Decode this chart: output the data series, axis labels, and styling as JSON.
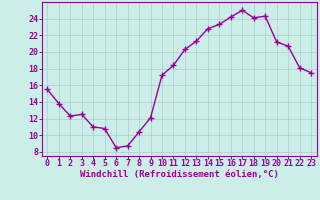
{
  "x": [
    0,
    1,
    2,
    3,
    4,
    5,
    6,
    7,
    8,
    9,
    10,
    11,
    12,
    13,
    14,
    15,
    16,
    17,
    18,
    19,
    20,
    21,
    22,
    23
  ],
  "y": [
    15.5,
    13.8,
    12.3,
    12.5,
    11.0,
    10.8,
    8.5,
    8.7,
    10.4,
    12.1,
    17.2,
    18.4,
    20.3,
    21.3,
    22.8,
    23.3,
    24.2,
    25.0,
    24.1,
    24.3,
    21.2,
    20.7,
    18.1,
    17.5
  ],
  "line_color": "#990099",
  "marker": "+",
  "marker_size": 4,
  "marker_linewidth": 1.0,
  "background_color": "#cceee8",
  "grid_color": "#aacccc",
  "xlabel": "Windchill (Refroidissement éolien,°C)",
  "xlim": [
    -0.5,
    23.5
  ],
  "ylim": [
    7.5,
    26
  ],
  "yticks": [
    8,
    10,
    12,
    14,
    16,
    18,
    20,
    22,
    24
  ],
  "xticks": [
    0,
    1,
    2,
    3,
    4,
    5,
    6,
    7,
    8,
    9,
    10,
    11,
    12,
    13,
    14,
    15,
    16,
    17,
    18,
    19,
    20,
    21,
    22,
    23
  ],
  "xlabel_fontsize": 6.5,
  "tick_fontsize": 6,
  "line_width": 1.0
}
